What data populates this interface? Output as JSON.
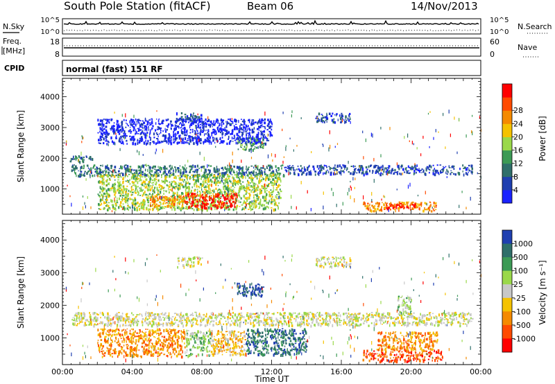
{
  "header": {
    "station": "South Pole Station (fitACF)",
    "beam": "Beam 06",
    "date": "14/Nov/2013"
  },
  "status_panels": {
    "nsky": {
      "left_label": "N.Sky",
      "left_ticks": [
        "10^5",
        "10^0"
      ],
      "right_label": "N.Search",
      "right_ticks": [
        "10^5",
        "10^0"
      ]
    },
    "freq": {
      "left_label_line1": "Freq.",
      "left_label_line2": "[MHz]",
      "left_ticks": [
        "18",
        "8"
      ],
      "right_label": "Nave",
      "right_ticks": [
        "60",
        "0"
      ]
    },
    "cpid": {
      "label": "CPID",
      "text": "normal (fast) 151 RF"
    }
  },
  "colors": {
    "power_scale": [
      "#1a22ff",
      "#1f3fb0",
      "#2f6f6a",
      "#3c9a55",
      "#9ad84a",
      "#f5c200",
      "#f58a00",
      "#ff4a00",
      "#ff0000"
    ],
    "velocity_scale": [
      "#1f3fb0",
      "#2f6f6a",
      "#3c9a55",
      "#9ad84a",
      "#c8c8c8",
      "#f5c200",
      "#f58a00",
      "#ff4a00",
      "#ff0000"
    ]
  },
  "chart_data": [
    {
      "type": "heatmap",
      "name": "power",
      "ylabel": "Slant Range [km]",
      "yticks": [
        1000,
        2000,
        3000,
        4000
      ],
      "ylim": [
        180,
        4600
      ],
      "xlim_hours": [
        0,
        24
      ],
      "colorbar": {
        "label": "Power [dB]",
        "ticks": [
          "4",
          "8",
          "12",
          "16",
          "20",
          "24",
          "28"
        ],
        "range": [
          0,
          30
        ]
      },
      "features": [
        {
          "t0": 0.5,
          "t1": 12.7,
          "r0": 1450,
          "r1": 1800,
          "level": 2
        },
        {
          "t0": 12.7,
          "t1": 23.5,
          "r0": 1500,
          "r1": 1800,
          "level": 1
        },
        {
          "t0": 2.0,
          "t1": 12.5,
          "r0": 350,
          "r1": 1500,
          "level": 4
        },
        {
          "t0": 7.0,
          "t1": 10.0,
          "r0": 400,
          "r1": 900,
          "level": 8
        },
        {
          "t0": 5.0,
          "t1": 7.0,
          "r0": 450,
          "r1": 800,
          "level": 6
        },
        {
          "t0": 17.2,
          "t1": 21.5,
          "r0": 300,
          "r1": 600,
          "level": 6
        },
        {
          "t0": 18.5,
          "t1": 20.5,
          "r0": 400,
          "r1": 550,
          "level": 8
        },
        {
          "t0": 6.5,
          "t1": 8.0,
          "r0": 3200,
          "r1": 3500,
          "level": 1
        },
        {
          "t0": 14.5,
          "t1": 16.5,
          "r0": 3200,
          "r1": 3500,
          "level": 1
        },
        {
          "t0": 10.0,
          "t1": 11.5,
          "r0": 2300,
          "r1": 2700,
          "level": 3
        },
        {
          "t0": 2.0,
          "t1": 12.0,
          "r0": 2500,
          "r1": 3300,
          "level": 0
        },
        {
          "t0": 0.3,
          "t1": 1.8,
          "r0": 1900,
          "r1": 2100,
          "level": 2
        }
      ]
    },
    {
      "type": "heatmap",
      "name": "velocity",
      "ylabel": "Slant Range [km]",
      "xlabel": "Time UT",
      "yticks": [
        1000,
        2000,
        3000,
        4000
      ],
      "ylim": [
        180,
        4600
      ],
      "xlim_hours": [
        0,
        24
      ],
      "xticks": [
        "00:00",
        "04:00",
        "08:00",
        "12:00",
        "16:00",
        "20:00",
        "00:00"
      ],
      "colorbar": {
        "label": "Velocity [m s⁻¹]",
        "ticks": [
          "1000",
          "500",
          "100",
          "25",
          "-25",
          "-100",
          "-500",
          "-1000"
        ],
        "range": [
          -1200,
          1200
        ]
      },
      "features": [
        {
          "t0": 0.5,
          "t1": 23.5,
          "r0": 1400,
          "r1": 1800,
          "level": 4
        },
        {
          "t0": 2.0,
          "t1": 7.0,
          "r0": 450,
          "r1": 1300,
          "level": 6
        },
        {
          "t0": 7.0,
          "t1": 8.5,
          "r0": 450,
          "r1": 1250,
          "level": 3
        },
        {
          "t0": 8.5,
          "t1": 10.5,
          "r0": 500,
          "r1": 1250,
          "level": 5
        },
        {
          "t0": 10.5,
          "t1": 14.0,
          "r0": 500,
          "r1": 1300,
          "level": 1
        },
        {
          "t0": 17.2,
          "t1": 21.8,
          "r0": 300,
          "r1": 650,
          "level": 7
        },
        {
          "t0": 18.0,
          "t1": 21.5,
          "r0": 650,
          "r1": 1200,
          "level": 6
        },
        {
          "t0": 19.2,
          "t1": 20.0,
          "r0": 1700,
          "r1": 2300,
          "level": 3
        },
        {
          "t0": 10.0,
          "t1": 11.5,
          "r0": 2300,
          "r1": 2700,
          "level": 0
        },
        {
          "t0": 6.5,
          "t1": 8.0,
          "r0": 3200,
          "r1": 3500,
          "level": 4
        },
        {
          "t0": 14.5,
          "t1": 16.5,
          "r0": 3200,
          "r1": 3500,
          "level": 4
        }
      ]
    }
  ]
}
